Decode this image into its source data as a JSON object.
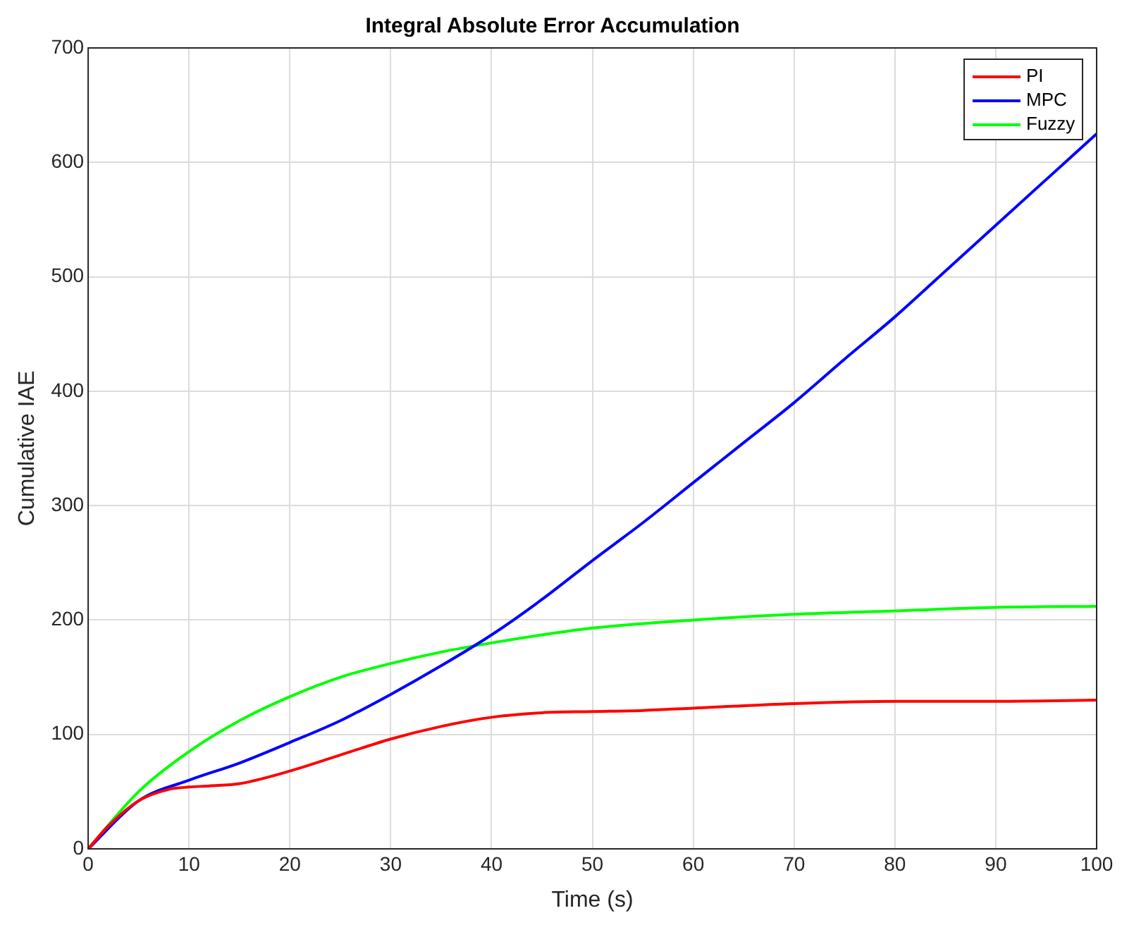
{
  "chart_data": {
    "type": "line",
    "title": "Integral Absolute Error Accumulation",
    "xlabel": "Time (s)",
    "ylabel": "Cumulative IAE",
    "xlim": [
      0,
      100
    ],
    "xticks": [
      0,
      10,
      20,
      30,
      40,
      50,
      60,
      70,
      80,
      90,
      100
    ],
    "ylim": [
      0,
      700
    ],
    "yticks": [
      0,
      100,
      200,
      300,
      400,
      500,
      600,
      700
    ],
    "grid": true,
    "legend": "top right",
    "marker": "none",
    "line_style": "solid",
    "series": [
      {
        "name": "PI",
        "color": "#ff0000",
        "x": [
          0,
          2,
          5,
          8,
          10,
          12,
          15,
          20,
          25,
          30,
          35,
          40,
          45,
          50,
          55,
          60,
          70,
          80,
          90,
          100
        ],
        "values": [
          0,
          20,
          42,
          52,
          54,
          55,
          57,
          68,
          82,
          96,
          107,
          115,
          119,
          120,
          121,
          123,
          127,
          129,
          129,
          130
        ]
      },
      {
        "name": "MPC",
        "color": "#0000ff",
        "x": [
          0,
          5,
          10,
          15,
          20,
          25,
          30,
          35,
          40,
          45,
          50,
          55,
          60,
          65,
          70,
          75,
          80,
          85,
          90,
          95,
          100
        ],
        "values": [
          0,
          42,
          60,
          75,
          93,
          112,
          135,
          160,
          187,
          218,
          252,
          285,
          320,
          355,
          390,
          428,
          465,
          505,
          545,
          585,
          625
        ]
      },
      {
        "name": "Fuzzy",
        "color": "#00ff00",
        "x": [
          0,
          5,
          10,
          15,
          20,
          25,
          30,
          35,
          40,
          45,
          50,
          60,
          70,
          80,
          90,
          100
        ],
        "values": [
          0,
          50,
          85,
          112,
          133,
          150,
          162,
          172,
          180,
          187,
          193,
          200,
          205,
          208,
          211,
          212
        ]
      }
    ]
  }
}
